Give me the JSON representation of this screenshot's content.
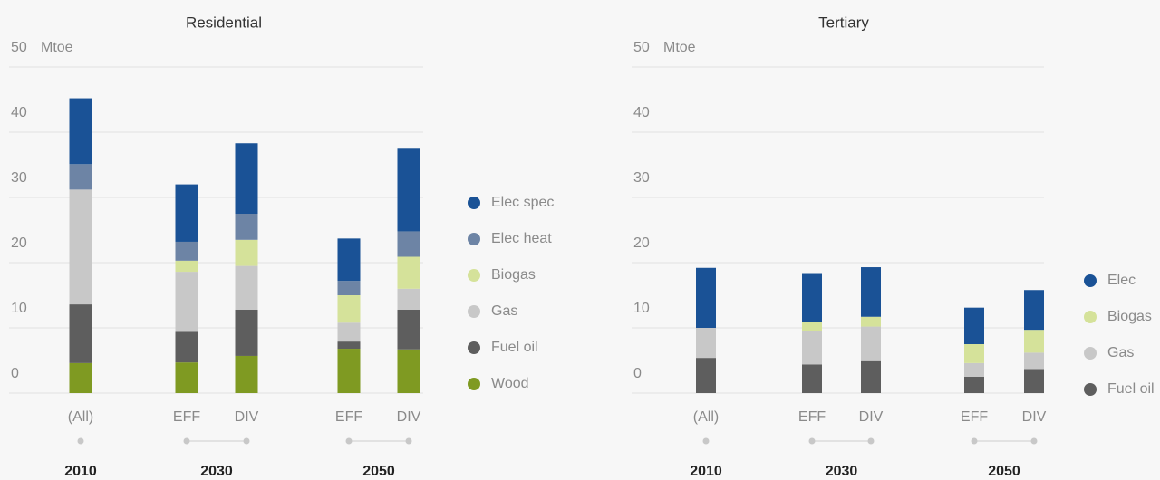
{
  "chart_data": [
    {
      "type": "bar",
      "stacked": true,
      "title": "Residential",
      "y_label": "Mtoe",
      "ylim": [
        0,
        50
      ],
      "yticks": [
        0,
        10,
        20,
        30,
        40,
        50
      ],
      "grid": true,
      "categories": [
        "(All)",
        "EFF",
        "DIV",
        "EFF",
        "DIV"
      ],
      "groups": [
        "2010",
        "2030",
        "2050"
      ],
      "series": [
        {
          "name": "Wood",
          "color": "#7f9a22",
          "values": [
            4.6,
            4.7,
            5.7,
            6.8,
            6.7
          ]
        },
        {
          "name": "Fuel oil",
          "color": "#5e5e5e",
          "values": [
            9.0,
            4.7,
            7.1,
            1.1,
            6.1
          ]
        },
        {
          "name": "Gas",
          "color": "#c8c8c8",
          "values": [
            17.6,
            9.2,
            6.7,
            2.9,
            3.2
          ]
        },
        {
          "name": "Biogas",
          "color": "#d5e29a",
          "values": [
            0,
            1.7,
            4.0,
            4.2,
            4.9
          ]
        },
        {
          "name": "Elec heat",
          "color": "#6d84a5",
          "values": [
            3.9,
            2.9,
            4.0,
            2.2,
            3.9
          ]
        },
        {
          "name": "Elec spec",
          "color": "#1a5296",
          "values": [
            10.1,
            8.8,
            10.8,
            6.5,
            12.8
          ]
        }
      ]
    },
    {
      "type": "bar",
      "stacked": true,
      "title": "Tertiary",
      "y_label": "Mtoe",
      "ylim": [
        0,
        50
      ],
      "yticks": [
        0,
        10,
        20,
        30,
        40,
        50
      ],
      "grid": true,
      "categories": [
        "(All)",
        "EFF",
        "DIV",
        "EFF",
        "DIV"
      ],
      "groups": [
        "2010",
        "2030",
        "2050"
      ],
      "series": [
        {
          "name": "Fuel oil",
          "color": "#5e5e5e",
          "values": [
            5.4,
            4.4,
            4.9,
            2.5,
            3.7
          ]
        },
        {
          "name": "Gas",
          "color": "#c8c8c8",
          "values": [
            4.6,
            5.1,
            5.3,
            2.1,
            2.5
          ]
        },
        {
          "name": "Biogas",
          "color": "#d5e29a",
          "values": [
            0,
            1.4,
            1.5,
            2.9,
            3.5
          ]
        },
        {
          "name": "Elec",
          "color": "#1a5296",
          "values": [
            9.2,
            7.5,
            7.6,
            5.6,
            6.1
          ]
        }
      ]
    }
  ]
}
